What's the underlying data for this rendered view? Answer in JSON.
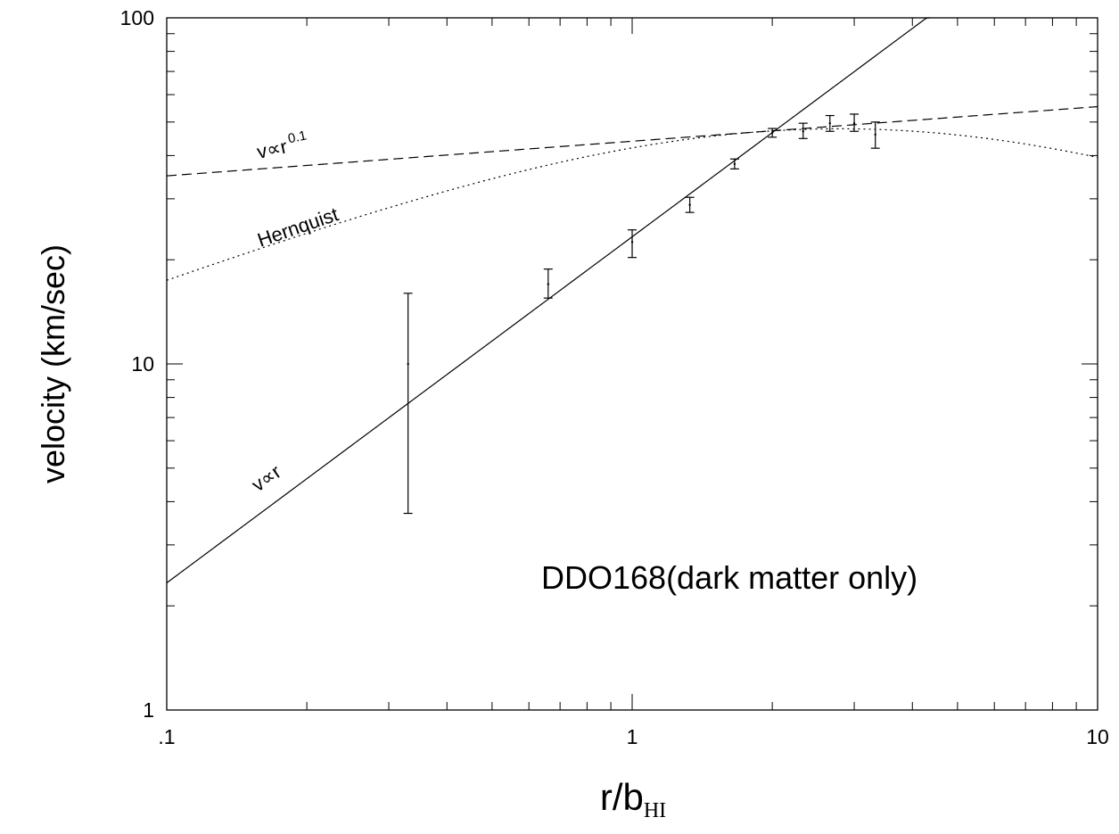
{
  "chart_data": {
    "type": "scatter",
    "title": "",
    "x_scale": "log",
    "y_scale": "log",
    "xlim": [
      0.1,
      10
    ],
    "ylim": [
      1,
      100
    ],
    "grid": false,
    "xlabel": {
      "main": "r/b",
      "sub": "HI"
    },
    "ylabel": "velocity (km/sec)",
    "x_tick_labels": [
      {
        "value": 0.1,
        "label": ".1"
      },
      {
        "value": 1,
        "label": "1"
      },
      {
        "value": 10,
        "label": "10"
      }
    ],
    "y_tick_labels": [
      {
        "value": 1,
        "label": "1"
      },
      {
        "value": 10,
        "label": "10"
      },
      {
        "value": 100,
        "label": "100"
      }
    ],
    "data_points": [
      {
        "x": 0.33,
        "y": 10.0,
        "y_low": 3.7,
        "y_high": 16.0
      },
      {
        "x": 0.66,
        "y": 17.0,
        "y_low": 15.5,
        "y_high": 18.8
      },
      {
        "x": 1.0,
        "y": 22.5,
        "y_low": 20.3,
        "y_high": 24.4
      },
      {
        "x": 1.33,
        "y": 28.8,
        "y_low": 27.4,
        "y_high": 30.3
      },
      {
        "x": 1.66,
        "y": 37.8,
        "y_low": 36.6,
        "y_high": 39.1
      },
      {
        "x": 2.0,
        "y": 46.5,
        "y_low": 45.2,
        "y_high": 47.9
      },
      {
        "x": 2.33,
        "y": 47.0,
        "y_low": 44.8,
        "y_high": 49.6
      },
      {
        "x": 2.66,
        "y": 49.6,
        "y_low": 47.0,
        "y_high": 52.2
      },
      {
        "x": 3.0,
        "y": 49.6,
        "y_low": 47.0,
        "y_high": 52.7
      },
      {
        "x": 3.33,
        "y": 46.0,
        "y_low": 42.0,
        "y_high": 50.0
      }
    ],
    "curves": [
      {
        "style": "solid",
        "label": "v∝r",
        "kind": "power",
        "coef": 23.3,
        "exponent": 1.0
      },
      {
        "style": "dashed",
        "label": "v∝r",
        "label_exponent": "0.1",
        "kind": "power",
        "coef": 44.0,
        "exponent": 0.1
      },
      {
        "style": "dotted",
        "label": "Hernquist",
        "kind": "hernquist",
        "vmax": 47.8,
        "rmax": 2.8
      }
    ],
    "annotation": "DDO168(dark matter only)"
  }
}
